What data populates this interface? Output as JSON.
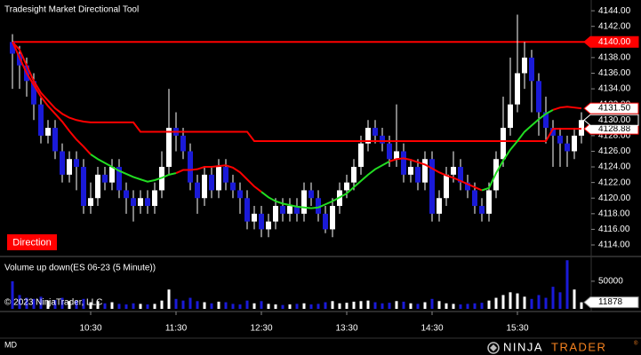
{
  "title": "Tradesight Market Directional Tool",
  "direction_button": "Direction",
  "copyright": "© 2023 NinjaTrader, LLC",
  "footer_tab": "MD",
  "logo": {
    "word1": "NINJA",
    "word2": "TRADER",
    "mark": "®"
  },
  "chart_data": [
    {
      "type": "candlestick",
      "categories": [
        null,
        null,
        null,
        null,
        null,
        null,
        null,
        null,
        null,
        null,
        null,
        "10:30",
        null,
        null,
        null,
        null,
        null,
        null,
        null,
        null,
        null,
        null,
        null,
        "11:30",
        null,
        null,
        null,
        null,
        null,
        null,
        null,
        null,
        null,
        null,
        null,
        "12:30",
        null,
        null,
        null,
        null,
        null,
        null,
        null,
        null,
        null,
        null,
        null,
        "13:30",
        null,
        null,
        null,
        null,
        null,
        null,
        null,
        null,
        null,
        null,
        null,
        "14:30",
        null,
        null,
        null,
        null,
        null,
        null,
        null,
        null,
        null,
        null,
        null,
        "15:30",
        null,
        null,
        null,
        null,
        null,
        null,
        null,
        null,
        null
      ],
      "open": [
        4140,
        4138.5,
        4137,
        4135,
        4132,
        4128,
        4129,
        4126,
        4123,
        4125,
        4124,
        4119,
        4120,
        4123,
        4122,
        4124,
        4121,
        4120,
        4119,
        4120,
        4119,
        4121,
        4124,
        4129,
        4128,
        4126,
        4122,
        4120,
        4123,
        4121,
        4124,
        4122,
        4121,
        4120,
        4117,
        4118,
        4116,
        4117,
        4119,
        4118,
        4119,
        4118,
        4121,
        4120,
        4118,
        4116,
        4119,
        4121,
        4122,
        4124,
        4127,
        4129,
        4128,
        4127,
        4125,
        4126,
        4123,
        4124,
        4122,
        4125,
        4118,
        4120,
        4123,
        4124,
        4122,
        4121,
        4119,
        4118,
        4121,
        4125,
        4129,
        4132,
        4136,
        4138,
        4135,
        4131,
        4129,
        4128,
        4127,
        4126,
        4128
      ],
      "high": [
        4141,
        4139.5,
        4138,
        4136,
        4133,
        4130,
        4130,
        4127,
        4126,
        4126,
        4125,
        4122,
        4124,
        4124,
        4125,
        4125,
        4122,
        4121,
        4121,
        4121,
        4122,
        4126,
        4134,
        4131,
        4129,
        4127,
        4123,
        4124,
        4124,
        4125,
        4125,
        4123,
        4122,
        4121,
        4119,
        4119,
        4118,
        4120,
        4120,
        4120,
        4120,
        4122,
        4122,
        4121,
        4119,
        4120,
        4122,
        4123,
        4125,
        4128,
        4130,
        4130,
        4129,
        4128,
        4132,
        4127,
        4125,
        4125,
        4126,
        4126,
        4121,
        4124,
        4126,
        4125,
        4123,
        4122,
        4120,
        4122,
        4126,
        4133,
        4138,
        4143.5,
        4140,
        4139,
        4136,
        4133,
        4130,
        4129,
        4128,
        4129,
        4131
      ],
      "low": [
        4134,
        4134,
        4133,
        4130,
        4127,
        4127,
        4125,
        4122,
        4122,
        4121,
        4118,
        4118,
        4119,
        4121,
        4121,
        4120,
        4118,
        4117,
        4118,
        4118,
        4118,
        4120,
        4123,
        4126,
        4125,
        4121,
        4118,
        4119,
        4120,
        4120,
        4121,
        4120,
        4118,
        4116,
        4116,
        4115,
        4115,
        4116,
        4117,
        4117,
        4117,
        4117,
        4119,
        4117,
        4115.5,
        4115,
        4118,
        4120,
        4121,
        4123,
        4126,
        4127,
        4126,
        4124,
        4124,
        4122,
        4122,
        4121,
        4121,
        4117,
        4117,
        4119,
        4122,
        4121,
        4120,
        4118,
        4117,
        4117,
        4120,
        4124,
        4128,
        4131,
        4134,
        4131,
        4128,
        4127,
        4124,
        4124,
        4124,
        4125,
        4127
      ],
      "close": [
        4138.5,
        4137,
        4135,
        4132,
        4128,
        4129,
        4126,
        4123,
        4125,
        4124,
        4119,
        4120,
        4123,
        4122,
        4124,
        4121,
        4120,
        4119,
        4120,
        4119,
        4121,
        4124,
        4129,
        4128,
        4126,
        4122,
        4120,
        4123,
        4121,
        4124,
        4122,
        4121,
        4120,
        4117,
        4118,
        4116,
        4117,
        4119,
        4118,
        4119,
        4118,
        4121,
        4120,
        4118,
        4116,
        4119,
        4121,
        4122,
        4124,
        4127,
        4129,
        4128,
        4127,
        4125,
        4126,
        4123,
        4124,
        4122,
        4125,
        4118,
        4120,
        4123,
        4124,
        4122,
        4121,
        4119,
        4118,
        4121,
        4125,
        4129,
        4132,
        4136,
        4138,
        4135,
        4131,
        4129,
        4128,
        4127,
        4126,
        4128,
        4130
      ],
      "up_color": "#ffffff",
      "down_color": "#1a1ad8",
      "wick_color": "#ffffff",
      "level_line": {
        "color": "#ff0000",
        "values": [
          4140,
          4139,
          4137,
          4135,
          4133.5,
          4132.5,
          4131.5,
          4130.8,
          4130.3,
          4130,
          4129.8,
          4129.7,
          4129.7,
          4129.7,
          4129.7,
          4129.7,
          4129.7,
          4129.7,
          4128.5,
          4128.5,
          4128.5,
          4128.5,
          4128.5,
          4128.5,
          4128.5,
          4128.5,
          4128.5,
          4128.5,
          4128.5,
          4128.5,
          4128.5,
          4128.5,
          4128.5,
          4128.5,
          4127.3,
          4127.3,
          4127.3,
          4127.3,
          4127.3,
          4127.3,
          4127.3,
          4127.3,
          4127.3,
          4127.3,
          4127.3,
          4127.3,
          4127.3,
          4127.3,
          4127.3,
          4127.3,
          4127.3,
          4127.3,
          4127.3,
          4127.3,
          4127.3,
          4127.3,
          4127.3,
          4127.3,
          4127.3,
          4127.3,
          4127.3,
          4127.3,
          4127.3,
          4127.3,
          4127.3,
          4127.3,
          4127.3,
          4127.3,
          4127.3,
          4127.3,
          4127.3,
          4127.3,
          4127.3,
          4127.3,
          4127.3,
          4127.3,
          4128.88,
          4128.88,
          4128.88,
          4128.88,
          4128.88
        ]
      },
      "trend_line": {
        "values": [
          4140,
          4138,
          4136,
          4134.5,
          4133,
          4131.8,
          4130.8,
          4129.8,
          4128.6,
          4127.5,
          4126.6,
          4125.6,
          4125,
          4124.5,
          4124,
          4123.5,
          4123.1,
          4122.7,
          4122.4,
          4122.1,
          4122.3,
          4122.6,
          4123,
          4123.2,
          4123.6,
          4123.6,
          4123.7,
          4124,
          4124,
          4124.1,
          4124.2,
          4123.9,
          4123.3,
          4122.4,
          4121.5,
          4120.8,
          4120.1,
          4119.6,
          4119.3,
          4119.1,
          4118.9,
          4118.8,
          4118.7,
          4118.8,
          4119.2,
          4119.6,
          4120.1,
          4120.6,
          4121.4,
          4122.2,
          4123,
          4123.7,
          4124.2,
          4124.7,
          4125,
          4125.1,
          4124.9,
          4124.6,
          4124.3,
          4123.8,
          4123.3,
          4122.9,
          4122.6,
          4122.2,
          4121.8,
          4121.4,
          4121,
          4121.3,
          4123.2,
          4124.8,
          4126.2,
          4127.3,
          4128.5,
          4129.3,
          4130.1,
          4130.8,
          4131.3,
          4131.6,
          4131.7,
          4131.6,
          4131.5
        ],
        "segments": [
          {
            "start": 0,
            "end": 11,
            "color": "#ff0000"
          },
          {
            "start": 11,
            "end": 23,
            "color": "#22dd22"
          },
          {
            "start": 23,
            "end": 35,
            "color": "#ff0000"
          },
          {
            "start": 35,
            "end": 53,
            "color": "#22dd22"
          },
          {
            "start": 53,
            "end": 66,
            "color": "#ff0000"
          },
          {
            "start": 66,
            "end": 76,
            "color": "#22dd22"
          },
          {
            "start": 76,
            "end": 80,
            "color": "#ff0000"
          }
        ]
      },
      "hlines": [
        {
          "value": 4140,
          "color": "#ff0000"
        }
      ],
      "price_markers": [
        {
          "value": 4140,
          "label": "4140.00",
          "fill": "#ff0000",
          "border": "#ff0000",
          "text_color": "#ffffff"
        },
        {
          "value": 4131.5,
          "label": "4131.50",
          "fill": "#ffffff",
          "border": "#ff0000",
          "text_color": "#000000"
        },
        {
          "value": 4128.88,
          "label": "4128.88",
          "fill": "#ffffff",
          "border": "#ff0000",
          "text_color": "#000000"
        },
        {
          "value": 4130,
          "label": "4130.00",
          "fill": "#000000",
          "border": "#ffffff",
          "text_color": "#ffffff"
        }
      ],
      "ylim": [
        4112.75,
        4145.15
      ],
      "yticks": [
        {
          "value": 4114,
          "label": "4114.00"
        },
        {
          "value": 4116,
          "label": "4116.00"
        },
        {
          "value": 4118,
          "label": "4118.00"
        },
        {
          "value": 4120,
          "label": "4120.00"
        },
        {
          "value": 4122,
          "label": "4122.00"
        },
        {
          "value": 4124,
          "label": "4124.00"
        },
        {
          "value": 4126,
          "label": "4126.00"
        },
        {
          "value": 4128,
          "label": "4128.00"
        },
        {
          "value": 4130,
          "label": "4130.00"
        },
        {
          "value": 4132,
          "label": "4132.00"
        },
        {
          "value": 4134,
          "label": "4134.00"
        },
        {
          "value": 4136,
          "label": "4136.00"
        },
        {
          "value": 4138,
          "label": "4138.00"
        },
        {
          "value": 4140,
          "label": "4140.00"
        },
        {
          "value": 4142,
          "label": "4142.00"
        },
        {
          "value": 4144,
          "label": "4144.00"
        }
      ]
    },
    {
      "type": "bar",
      "title": "Volume up down(ES 06-23 (5 Minute))",
      "values": [
        50000,
        25000,
        20000,
        18000,
        22000,
        15000,
        16000,
        20000,
        14000,
        15000,
        18000,
        12000,
        14000,
        10000,
        12000,
        9000,
        8000,
        10000,
        9000,
        8000,
        9000,
        15000,
        35000,
        18000,
        15000,
        20000,
        14000,
        12000,
        10000,
        13000,
        12000,
        9000,
        8000,
        15000,
        10000,
        14000,
        9000,
        8000,
        7000,
        8000,
        9000,
        10000,
        8000,
        9000,
        12000,
        14000,
        10000,
        11000,
        13000,
        14000,
        15000,
        12000,
        10000,
        11000,
        14000,
        13000,
        10000,
        9000,
        12000,
        18000,
        14000,
        10000,
        9000,
        8000,
        9000,
        10000,
        11000,
        15000,
        20000,
        25000,
        30000,
        28000,
        22000,
        18000,
        25000,
        20000,
        40000,
        30000,
        88000,
        35000,
        11878
      ],
      "up_color": "#ffffff",
      "down_color": "#1a1ad8",
      "ylim": [
        0,
        90000
      ],
      "yticks": [
        50000
      ]
    }
  ]
}
